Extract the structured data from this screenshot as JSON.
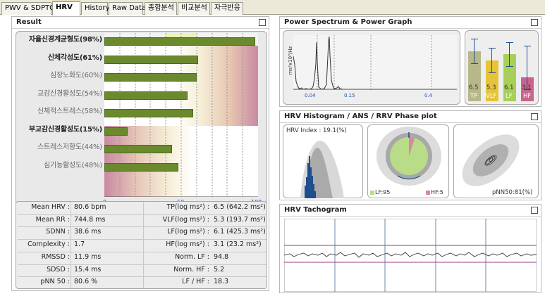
{
  "tabs": [
    "PWV & SDPTG",
    "HRV",
    "History",
    "Raw Data",
    "종합분석",
    "비교분석",
    "자극반응"
  ],
  "active_tab": "HRV",
  "result": {
    "title": "Result",
    "rows": [
      {
        "label": "자율신경계균형도(98%)",
        "value": 98,
        "major": true
      },
      {
        "label": "신체각성도(61%)",
        "value": 61,
        "major": true
      },
      {
        "label": "심장노화도(60%)",
        "value": 60,
        "major": false
      },
      {
        "label": "교감신경활성도(54%)",
        "value": 54,
        "major": false
      },
      {
        "label": "신체적스트레스(58%)",
        "value": 58,
        "major": false
      },
      {
        "label": "부교감신경활성도(15%)",
        "value": 15,
        "major": true
      },
      {
        "label": "스트레스저항도(44%)",
        "value": 44,
        "major": false
      },
      {
        "label": "심기능활성도(48%)",
        "value": 48,
        "major": false
      }
    ],
    "axis_ticks": [
      "0",
      "50",
      "100"
    ]
  },
  "stats": {
    "left": [
      {
        "label": "Mean HRV :",
        "value": "80.6 bpm"
      },
      {
        "label": "Mean RR :",
        "value": "744.8 ms"
      },
      {
        "label": "SDNN :",
        "value": "38.6 ms"
      },
      {
        "label": "Complexity :",
        "value": "1.7"
      },
      {
        "label": "RMSSD :",
        "value": "11.9 ms"
      },
      {
        "label": "SDSD :",
        "value": "15.4 ms"
      },
      {
        "label": "pNN 50 :",
        "value": "80.6 %"
      }
    ],
    "right": [
      {
        "label": "TP(log ms²) :",
        "value": "6.5 (642.2 ms²)"
      },
      {
        "label": "VLF(log ms²) :",
        "value": "5.3 (193.7 ms²)"
      },
      {
        "label": "LF(log ms²) :",
        "value": "6.1 (425.3 ms²)"
      },
      {
        "label": "HF(log ms²) :",
        "value": "3.1 (23.2 ms²)"
      },
      {
        "label": "Norm. LF :",
        "value": "94.8"
      },
      {
        "label": "Norm. HF :",
        "value": "5.2"
      },
      {
        "label": "LF / HF :",
        "value": "18.3"
      }
    ]
  },
  "power": {
    "title": "Power Spectrum & Power Graph",
    "ylabel": "ms²x10³/Hz",
    "xticks": [
      "0.04",
      "0.15",
      "0.4"
    ],
    "bars": [
      {
        "name": "TP",
        "value": "6.5",
        "color": "#b6b88a"
      },
      {
        "name": "VLF",
        "value": "5.3",
        "color": "#e6c43a"
      },
      {
        "name": "LF",
        "value": "6.1",
        "color": "#a8cf58"
      },
      {
        "name": "HF",
        "value": "3.1",
        "color": "#c8648e"
      }
    ]
  },
  "histogram": {
    "title": "HRV Histogram / ANS / RRV Phase plot",
    "hrv_index": "HRV Index : 19.1(%)",
    "lf_label": "LF:95",
    "hf_label": "HF:5",
    "pnn_label": "pNN50:81(%)",
    "lf_color": "#b8dc88",
    "hf_color": "#d48aa4"
  },
  "tachogram": {
    "title": "HRV Tachogram"
  }
}
